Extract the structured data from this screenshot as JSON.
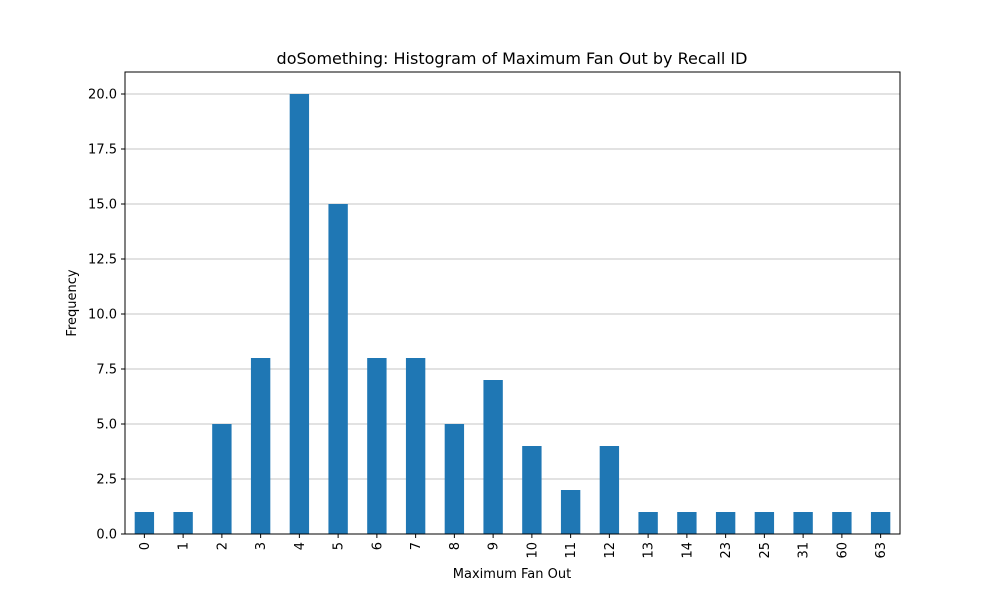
{
  "chart_data": {
    "type": "bar",
    "title": "doSomething: Histogram of Maximum Fan Out by Recall ID",
    "xlabel": "Maximum Fan Out",
    "ylabel": "Frequency",
    "categories": [
      "0",
      "1",
      "2",
      "3",
      "4",
      "5",
      "6",
      "7",
      "8",
      "9",
      "10",
      "11",
      "12",
      "13",
      "14",
      "23",
      "25",
      "31",
      "60",
      "63"
    ],
    "values": [
      1,
      1,
      5,
      8,
      20,
      15,
      8,
      8,
      5,
      7,
      4,
      2,
      4,
      1,
      1,
      1,
      1,
      1,
      1,
      1
    ],
    "ylim": [
      0,
      21
    ],
    "yticks": [
      0.0,
      2.5,
      5.0,
      7.5,
      10.0,
      12.5,
      15.0,
      17.5,
      20.0
    ],
    "ytick_labels": [
      "0.0",
      "2.5",
      "5.0",
      "7.5",
      "10.0",
      "12.5",
      "15.0",
      "17.5",
      "20.0"
    ],
    "grid": "horizontal",
    "x_tick_rotation": "vertical",
    "bar_color": "#1f77b4",
    "grid_color": "#b0b0b0"
  }
}
